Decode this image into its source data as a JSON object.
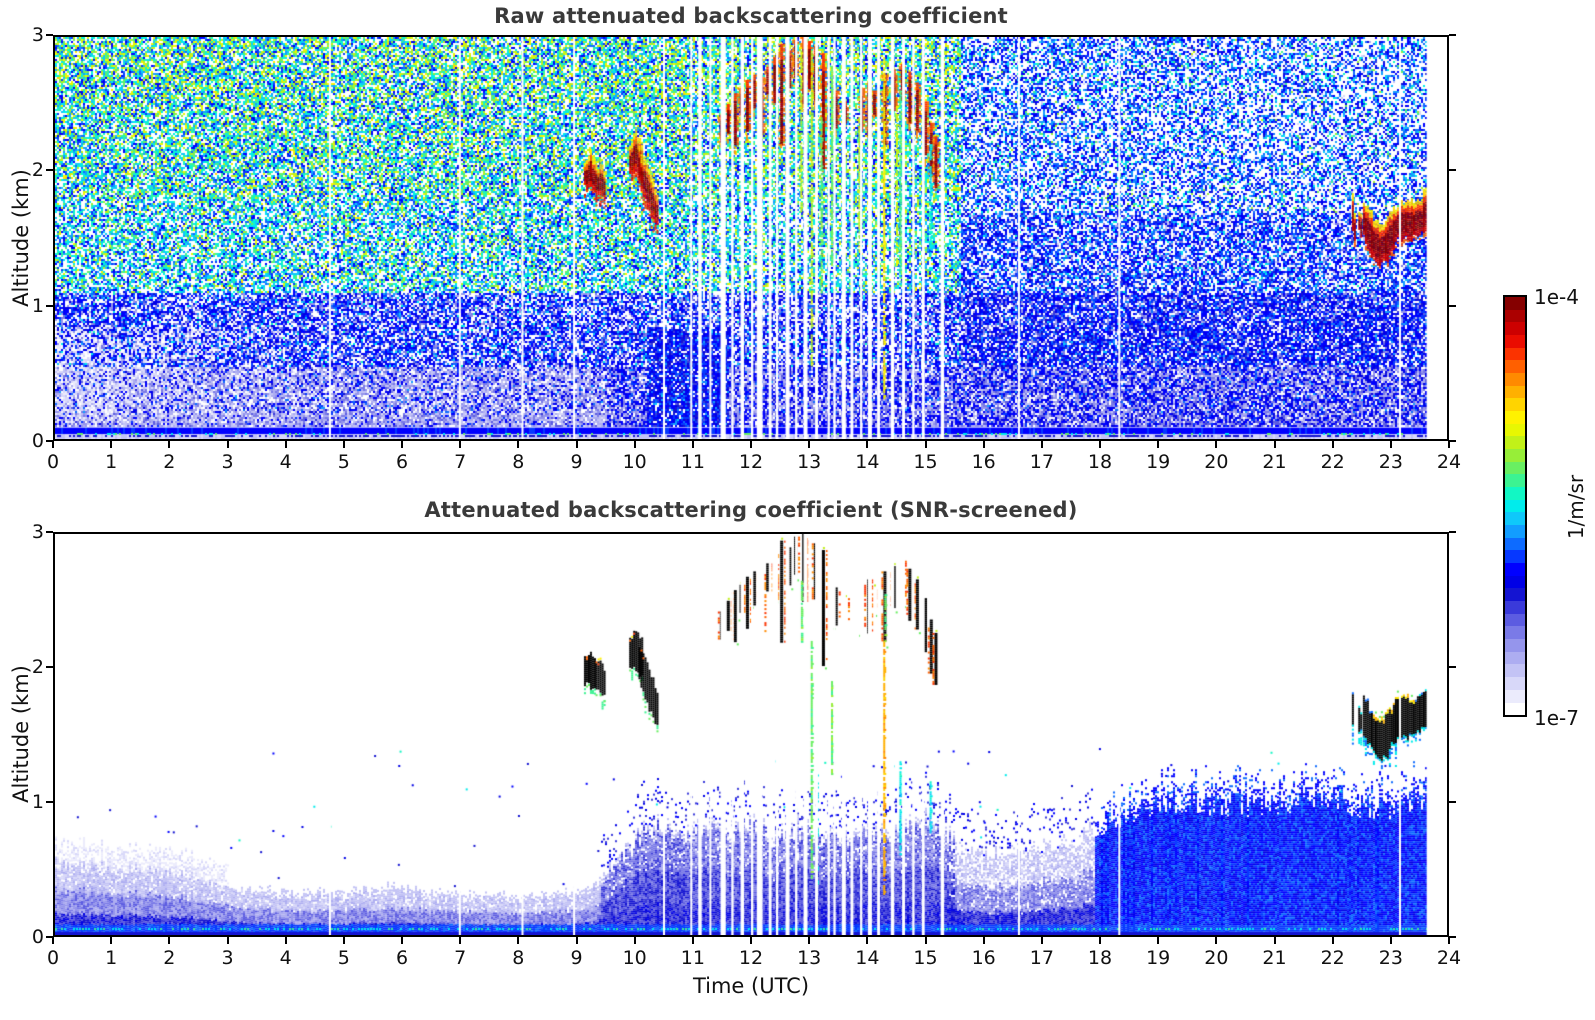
{
  "axes": {
    "x_label": "Time (UTC)",
    "y_label": "Altitude (km)",
    "x_ticks": [
      "0",
      "1",
      "2",
      "3",
      "4",
      "5",
      "6",
      "7",
      "8",
      "9",
      "10",
      "11",
      "12",
      "13",
      "14",
      "15",
      "16",
      "17",
      "18",
      "19",
      "20",
      "21",
      "22",
      "23",
      "24"
    ],
    "y_ticks": [
      "0",
      "1",
      "2",
      "3"
    ],
    "x_range": [
      0,
      24
    ],
    "y_range": [
      0,
      3
    ]
  },
  "colorbar": {
    "max_label": "1e-4",
    "min_label": "1e-7",
    "unit": "1/m/sr",
    "scale": "log",
    "min": 1e-07,
    "max": 0.0001,
    "colors": [
      "#ffffff",
      "#ebebfc",
      "#d8d8f9",
      "#c3c3f5",
      "#adadf1",
      "#9595ec",
      "#7a7ae7",
      "#5c5ce1",
      "#3a3ada",
      "#1414d2",
      "#0000e6",
      "#0000ff",
      "#0638ff",
      "#0d6bff",
      "#129dff",
      "#0fc8fa",
      "#00ecec",
      "#12f7c4",
      "#3cf392",
      "#69ef62",
      "#97ee38",
      "#c2f118",
      "#e8f702",
      "#fff200",
      "#ffd400",
      "#ffb000",
      "#ff8a00",
      "#ff6000",
      "#fb3300",
      "#ea0c00",
      "#cd0000",
      "#ab0000",
      "#850000"
    ]
  },
  "chart_data": [
    {
      "type": "heatmap",
      "title": "Raw attenuated backscattering coefficient",
      "x": {
        "label": "Time (UTC)",
        "range": [
          0,
          24
        ],
        "tick_step": 1,
        "data_end": 23.65
      },
      "y": {
        "label": "Altitude (km)",
        "range": [
          0,
          3
        ],
        "tick_step": 1
      },
      "value": {
        "unit": "1/m/sr",
        "scale": "log",
        "min": 1e-07,
        "max": 0.0001
      },
      "features": {
        "noise": "dense speckle noise over full height; green-yellow tinted aloft before 15 UTC, blue-white on right; pale aerosol haze below 0.8 km before 5 UTC; solid blue surface band below 0.09 km",
        "plumes": [
          {
            "t0": 9.12,
            "t1": 9.32,
            "top": [
              2.08,
              2.14,
              2.04
            ],
            "bot": [
              1.9,
              1.87,
              1.85
            ]
          },
          {
            "t0": 9.32,
            "t1": 9.47,
            "top": [
              2.02,
              2.07,
              1.96
            ],
            "bot": [
              1.83,
              1.8,
              1.8
            ]
          },
          {
            "t0": 9.9,
            "t1": 10.14,
            "top": [
              2.2,
              2.3,
              2.16
            ],
            "bot": [
              2.0,
              1.98,
              1.92
            ]
          },
          {
            "t0": 10.06,
            "t1": 10.38,
            "top": [
              2.16,
              2.02,
              1.8
            ],
            "bot": [
              1.92,
              1.7,
              1.58
            ]
          }
        ],
        "cirrus": [
          [
            11.48,
            2.42,
            2.22
          ],
          [
            11.6,
            2.5,
            2.28
          ],
          [
            11.72,
            2.58,
            2.2
          ],
          [
            11.82,
            2.62,
            2.42
          ],
          [
            11.93,
            2.68,
            2.3
          ],
          [
            12.05,
            2.72,
            2.48
          ],
          [
            12.18,
            2.7,
            2.28
          ],
          [
            12.28,
            2.78,
            2.58
          ],
          [
            12.4,
            2.85,
            2.52
          ],
          [
            12.52,
            2.95,
            2.2
          ],
          [
            12.66,
            2.9,
            2.62
          ],
          [
            12.76,
            2.98,
            2.7
          ],
          [
            12.9,
            3.0,
            2.5
          ],
          [
            13.0,
            2.97,
            2.62
          ],
          [
            13.1,
            2.93,
            2.52
          ],
          [
            13.24,
            2.88,
            2.02
          ],
          [
            13.46,
            2.6,
            2.32
          ],
          [
            13.62,
            2.52,
            2.36
          ],
          [
            13.9,
            2.62,
            2.3
          ],
          [
            14.02,
            2.66,
            2.26
          ],
          [
            14.12,
            2.6,
            2.42
          ],
          [
            14.3,
            2.72,
            2.2
          ],
          [
            14.46,
            2.76,
            2.46
          ],
          [
            14.6,
            2.8,
            2.52
          ],
          [
            14.73,
            2.74,
            2.36
          ],
          [
            14.86,
            2.66,
            2.3
          ],
          [
            15.0,
            2.52,
            2.12
          ],
          [
            15.1,
            2.36,
            1.96
          ],
          [
            15.18,
            2.26,
            1.88
          ]
        ],
        "columns": [
          {
            "t": 12.85,
            "top": 2.9,
            "bot": 1.7,
            "color": "gy"
          },
          {
            "t": 13.03,
            "top": 2.9,
            "bot": 0.55,
            "color": "gy"
          },
          {
            "t": 13.2,
            "top": 2.4,
            "bot": 1.1,
            "color": "green"
          },
          {
            "t": 13.38,
            "top": 2.8,
            "bot": 1.3,
            "color": "green"
          },
          {
            "t": 13.85,
            "top": 2.4,
            "bot": 1.4,
            "color": "gy"
          },
          {
            "t": 14.28,
            "top": 2.85,
            "bot": 0.3,
            "color": "yellow"
          },
          {
            "t": 14.5,
            "top": 2.5,
            "bot": 1.3,
            "color": "gy"
          },
          {
            "t": 14.56,
            "top": 2.6,
            "bot": 1.15,
            "color": "spring"
          },
          {
            "t": 15.08,
            "top": 2.2,
            "bot": 1.35,
            "color": "cyan"
          }
        ],
        "band": {
          "t0": 22.55,
          "t1": 23.65,
          "center": [
            1.64,
            1.52,
            1.45,
            1.5,
            1.6,
            1.64,
            1.62,
            1.66,
            1.71
          ],
          "halfth": 0.13
        },
        "fragments": [
          {
            "t0": 22.36,
            "t1": 22.41,
            "center": [
              1.68,
              1.52
            ],
            "halfth": 0.1
          },
          {
            "t0": 22.47,
            "t1": 22.52,
            "center": [
              1.62,
              1.58
            ],
            "halfth": 0.07
          }
        ],
        "gaps": [
          [
            4.74,
            0.02
          ],
          [
            6.98,
            0.02
          ],
          [
            8.06,
            0.02
          ],
          [
            8.95,
            0.02
          ],
          [
            10.5,
            0.02
          ],
          [
            10.97,
            0.03
          ],
          [
            11.12,
            0.06
          ],
          [
            11.3,
            0.03
          ],
          [
            11.52,
            0.09
          ],
          [
            11.68,
            0.04
          ],
          [
            11.85,
            0.06
          ],
          [
            12.02,
            0.04
          ],
          [
            12.15,
            0.1
          ],
          [
            12.33,
            0.05
          ],
          [
            12.45,
            0.04
          ],
          [
            12.63,
            0.07
          ],
          [
            12.78,
            0.04
          ],
          [
            12.94,
            0.07
          ],
          [
            13.13,
            0.05
          ],
          [
            13.34,
            0.04
          ],
          [
            13.44,
            0.04
          ],
          [
            13.6,
            0.07
          ],
          [
            13.74,
            0.05
          ],
          [
            13.9,
            0.04
          ],
          [
            14.05,
            0.07
          ],
          [
            14.2,
            0.05
          ],
          [
            14.44,
            0.06
          ],
          [
            14.63,
            0.05
          ],
          [
            14.8,
            0.04
          ],
          [
            14.97,
            0.05
          ],
          [
            15.3,
            0.06
          ],
          [
            16.62,
            0.02
          ],
          [
            18.35,
            0.02
          ],
          [
            23.19,
            0.03
          ]
        ]
      }
    },
    {
      "type": "heatmap",
      "title": "Attenuated backscattering coefficient (SNR-screened)",
      "x": {
        "label": "Time (UTC)",
        "range": [
          0,
          24
        ],
        "tick_step": 1,
        "data_end": 23.65
      },
      "y": {
        "label": "Altitude (km)",
        "range": [
          0,
          3
        ],
        "tick_step": 1
      },
      "value": {
        "unit": "1/m/sr",
        "scale": "log",
        "min": 1e-07,
        "max": 0.0001
      },
      "features": {
        "noise": "white above boundary layer; saturated (black) cloud returns; bright blue boundary layer after 18 UTC; bright blue surface band",
        "bl": [
          [
            0,
            0.55
          ],
          [
            0.8,
            0.52
          ],
          [
            1.6,
            0.5
          ],
          [
            2.4,
            0.45
          ],
          [
            3,
            0.34
          ],
          [
            4,
            0.3
          ],
          [
            5,
            0.3
          ],
          [
            5.8,
            0.34
          ],
          [
            6.5,
            0.3
          ],
          [
            7.5,
            0.28
          ],
          [
            8.5,
            0.28
          ],
          [
            9.2,
            0.32
          ],
          [
            9.6,
            0.5
          ],
          [
            10,
            0.72
          ],
          [
            10.4,
            0.85
          ],
          [
            10.8,
            0.72
          ],
          [
            11.2,
            0.8
          ],
          [
            11.6,
            0.74
          ],
          [
            12,
            0.85
          ],
          [
            12.4,
            0.72
          ],
          [
            12.8,
            0.8
          ],
          [
            13.2,
            0.74
          ],
          [
            13.6,
            0.7
          ],
          [
            14,
            0.8
          ],
          [
            14.4,
            0.74
          ],
          [
            15,
            0.85
          ],
          [
            15.4,
            0.72
          ],
          [
            15.8,
            0.58
          ],
          [
            16.4,
            0.6
          ],
          [
            17,
            0.64
          ],
          [
            17.6,
            0.7
          ],
          [
            18,
            0.82
          ],
          [
            18.6,
            0.92
          ],
          [
            19.2,
            1.0
          ],
          [
            20,
            1.0
          ],
          [
            20.8,
            0.96
          ],
          [
            21.6,
            1.0
          ],
          [
            22.4,
            0.97
          ],
          [
            23,
            0.95
          ],
          [
            23.65,
            1.02
          ]
        ],
        "plumes": [
          {
            "t0": 9.12,
            "t1": 9.32,
            "top": [
              2.08,
              2.14,
              2.04
            ],
            "bot": [
              1.9,
              1.87,
              1.85
            ]
          },
          {
            "t0": 9.32,
            "t1": 9.47,
            "top": [
              2.02,
              2.07,
              1.96
            ],
            "bot": [
              1.83,
              1.8,
              1.8
            ]
          },
          {
            "t0": 9.9,
            "t1": 10.14,
            "top": [
              2.2,
              2.3,
              2.16
            ],
            "bot": [
              2.0,
              1.98,
              1.92
            ]
          },
          {
            "t0": 10.06,
            "t1": 10.38,
            "top": [
              2.16,
              2.02,
              1.8
            ],
            "bot": [
              1.92,
              1.7,
              1.58
            ]
          }
        ],
        "cirrus": [
          [
            11.48,
            2.42,
            2.22
          ],
          [
            11.6,
            2.5,
            2.28
          ],
          [
            11.72,
            2.58,
            2.2
          ],
          [
            11.82,
            2.62,
            2.42
          ],
          [
            11.93,
            2.68,
            2.3
          ],
          [
            12.05,
            2.72,
            2.48
          ],
          [
            12.18,
            2.7,
            2.28
          ],
          [
            12.28,
            2.78,
            2.58
          ],
          [
            12.4,
            2.85,
            2.52
          ],
          [
            12.52,
            2.95,
            2.2
          ],
          [
            12.66,
            2.9,
            2.62
          ],
          [
            12.76,
            2.98,
            2.7
          ],
          [
            12.9,
            3.0,
            2.5
          ],
          [
            13.0,
            2.97,
            2.62
          ],
          [
            13.1,
            2.93,
            2.52
          ],
          [
            13.24,
            2.88,
            2.02
          ],
          [
            13.46,
            2.6,
            2.32
          ],
          [
            13.62,
            2.52,
            2.36
          ],
          [
            13.9,
            2.62,
            2.3
          ],
          [
            14.02,
            2.66,
            2.26
          ],
          [
            14.12,
            2.6,
            2.42
          ],
          [
            14.3,
            2.72,
            2.2
          ],
          [
            14.46,
            2.76,
            2.46
          ],
          [
            14.6,
            2.8,
            2.52
          ],
          [
            14.73,
            2.74,
            2.36
          ],
          [
            14.86,
            2.66,
            2.3
          ],
          [
            15.0,
            2.52,
            2.12
          ],
          [
            15.1,
            2.36,
            1.96
          ],
          [
            15.18,
            2.26,
            1.88
          ]
        ],
        "columns": [
          {
            "t": 12.86,
            "top": 2.65,
            "bot": 2.2,
            "color": "green"
          },
          {
            "t": 13.03,
            "top": 2.2,
            "bot": 0.4,
            "color": "green"
          },
          {
            "t": 13.12,
            "top": 1.5,
            "bot": 0.35,
            "color": "cyan"
          },
          {
            "t": 13.38,
            "top": 1.9,
            "bot": 1.2,
            "color": "green"
          },
          {
            "t": 14.28,
            "top": 2.2,
            "bot": 0.3,
            "color": "orange"
          },
          {
            "t": 14.3,
            "top": 2.55,
            "bot": 2.2,
            "color": "green"
          },
          {
            "t": 14.56,
            "top": 1.3,
            "bot": 0.6,
            "color": "cyan"
          },
          {
            "t": 15.08,
            "top": 1.15,
            "bot": 0.75,
            "color": "cyan"
          }
        ],
        "band": {
          "t0": 22.55,
          "t1": 23.65,
          "center": [
            1.64,
            1.52,
            1.45,
            1.5,
            1.6,
            1.64,
            1.62,
            1.66,
            1.71
          ],
          "halfth": 0.13
        },
        "fragments": [
          {
            "t0": 22.36,
            "t1": 22.41,
            "center": [
              1.68,
              1.52
            ],
            "halfth": 0.1
          },
          {
            "t0": 22.47,
            "t1": 22.52,
            "center": [
              1.62,
              1.58
            ],
            "halfth": 0.07
          }
        ],
        "gaps": [
          [
            4.74,
            0.02
          ],
          [
            6.98,
            0.02
          ],
          [
            8.06,
            0.02
          ],
          [
            8.95,
            0.02
          ],
          [
            10.5,
            0.02
          ],
          [
            10.97,
            0.03
          ],
          [
            11.12,
            0.06
          ],
          [
            11.3,
            0.03
          ],
          [
            11.52,
            0.09
          ],
          [
            11.68,
            0.04
          ],
          [
            11.85,
            0.06
          ],
          [
            12.02,
            0.04
          ],
          [
            12.15,
            0.1
          ],
          [
            12.33,
            0.05
          ],
          [
            12.45,
            0.04
          ],
          [
            12.63,
            0.07
          ],
          [
            12.78,
            0.04
          ],
          [
            12.94,
            0.07
          ],
          [
            13.13,
            0.05
          ],
          [
            13.34,
            0.04
          ],
          [
            13.44,
            0.04
          ],
          [
            13.6,
            0.07
          ],
          [
            13.74,
            0.05
          ],
          [
            13.9,
            0.04
          ],
          [
            14.05,
            0.07
          ],
          [
            14.2,
            0.05
          ],
          [
            14.44,
            0.06
          ],
          [
            14.63,
            0.05
          ],
          [
            14.8,
            0.04
          ],
          [
            14.97,
            0.05
          ],
          [
            15.3,
            0.06
          ],
          [
            16.62,
            0.02
          ],
          [
            18.35,
            0.02
          ],
          [
            23.19,
            0.03
          ]
        ]
      }
    }
  ]
}
